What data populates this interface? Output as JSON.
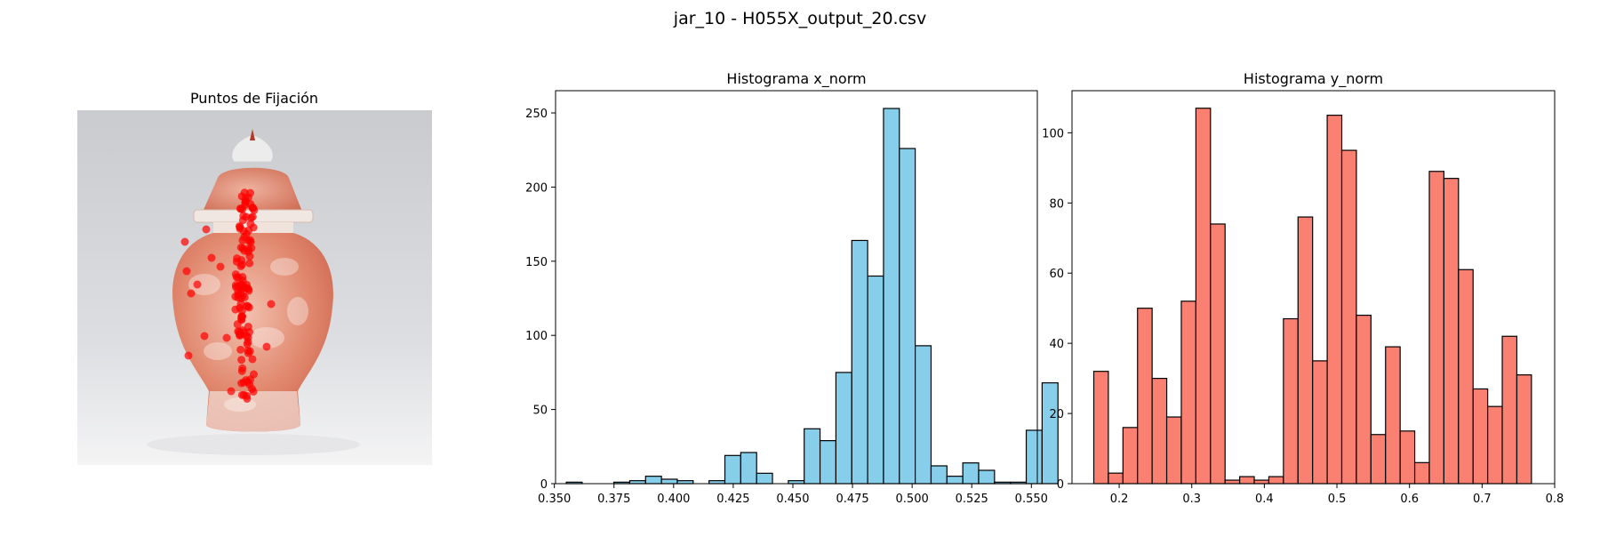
{
  "figure": {
    "suptitle": "jar_10 - H055X_output_20.csv"
  },
  "image_panel": {
    "title": "Puntos de Fijación",
    "picture": "porcelain ginger jar with red floral pattern",
    "point_color": "#ff0000"
  },
  "chart_data": [
    {
      "type": "bar",
      "title": "Histograma x_norm",
      "color": "#87ceeb",
      "edgecolor": "#000000",
      "bin_start": 0.355,
      "bin_width": 0.00665,
      "values": [
        1,
        0,
        0,
        1,
        2,
        5,
        3,
        2,
        0,
        2,
        19,
        21,
        7,
        0,
        2,
        37,
        29,
        75,
        164,
        140,
        253,
        226,
        93,
        12,
        5,
        14,
        9,
        1,
        1,
        36,
        68
      ],
      "xlim": [
        0.3505,
        0.5525
      ],
      "ylim": [
        0,
        265
      ],
      "xticks": [
        0.35,
        0.375,
        0.4,
        0.425,
        0.45,
        0.475,
        0.5,
        0.525,
        0.55
      ],
      "xtick_labels": [
        "0.350",
        "0.375",
        "0.400",
        "0.425",
        "0.450",
        "0.475",
        "0.500",
        "0.525",
        "0.550"
      ],
      "yticks": [
        0,
        50,
        100,
        150,
        200,
        250
      ],
      "ytick_labels": [
        "0",
        "50",
        "100",
        "150",
        "200",
        "250"
      ]
    },
    {
      "type": "bar",
      "title": "Histograma y_norm",
      "color": "#fa8072",
      "edgecolor": "#000000",
      "bin_start": 0.165,
      "bin_width": 0.0201,
      "values": [
        32,
        3,
        16,
        50,
        30,
        19,
        52,
        107,
        74,
        1,
        2,
        1,
        2,
        47,
        76,
        35,
        105,
        95,
        48,
        14,
        39,
        15,
        6,
        89,
        87,
        61,
        27,
        22,
        42,
        31
      ],
      "xlim": [
        0.135,
        0.8
      ],
      "ylim": [
        0,
        112
      ],
      "xticks": [
        0.2,
        0.3,
        0.4,
        0.5,
        0.6,
        0.7,
        0.8
      ],
      "xtick_labels": [
        "0.2",
        "0.3",
        "0.4",
        "0.5",
        "0.6",
        "0.7",
        "0.8"
      ],
      "yticks": [
        0,
        20,
        40,
        60,
        80,
        100
      ],
      "ytick_labels": [
        "0",
        "20",
        "40",
        "60",
        "80",
        "100"
      ]
    }
  ]
}
